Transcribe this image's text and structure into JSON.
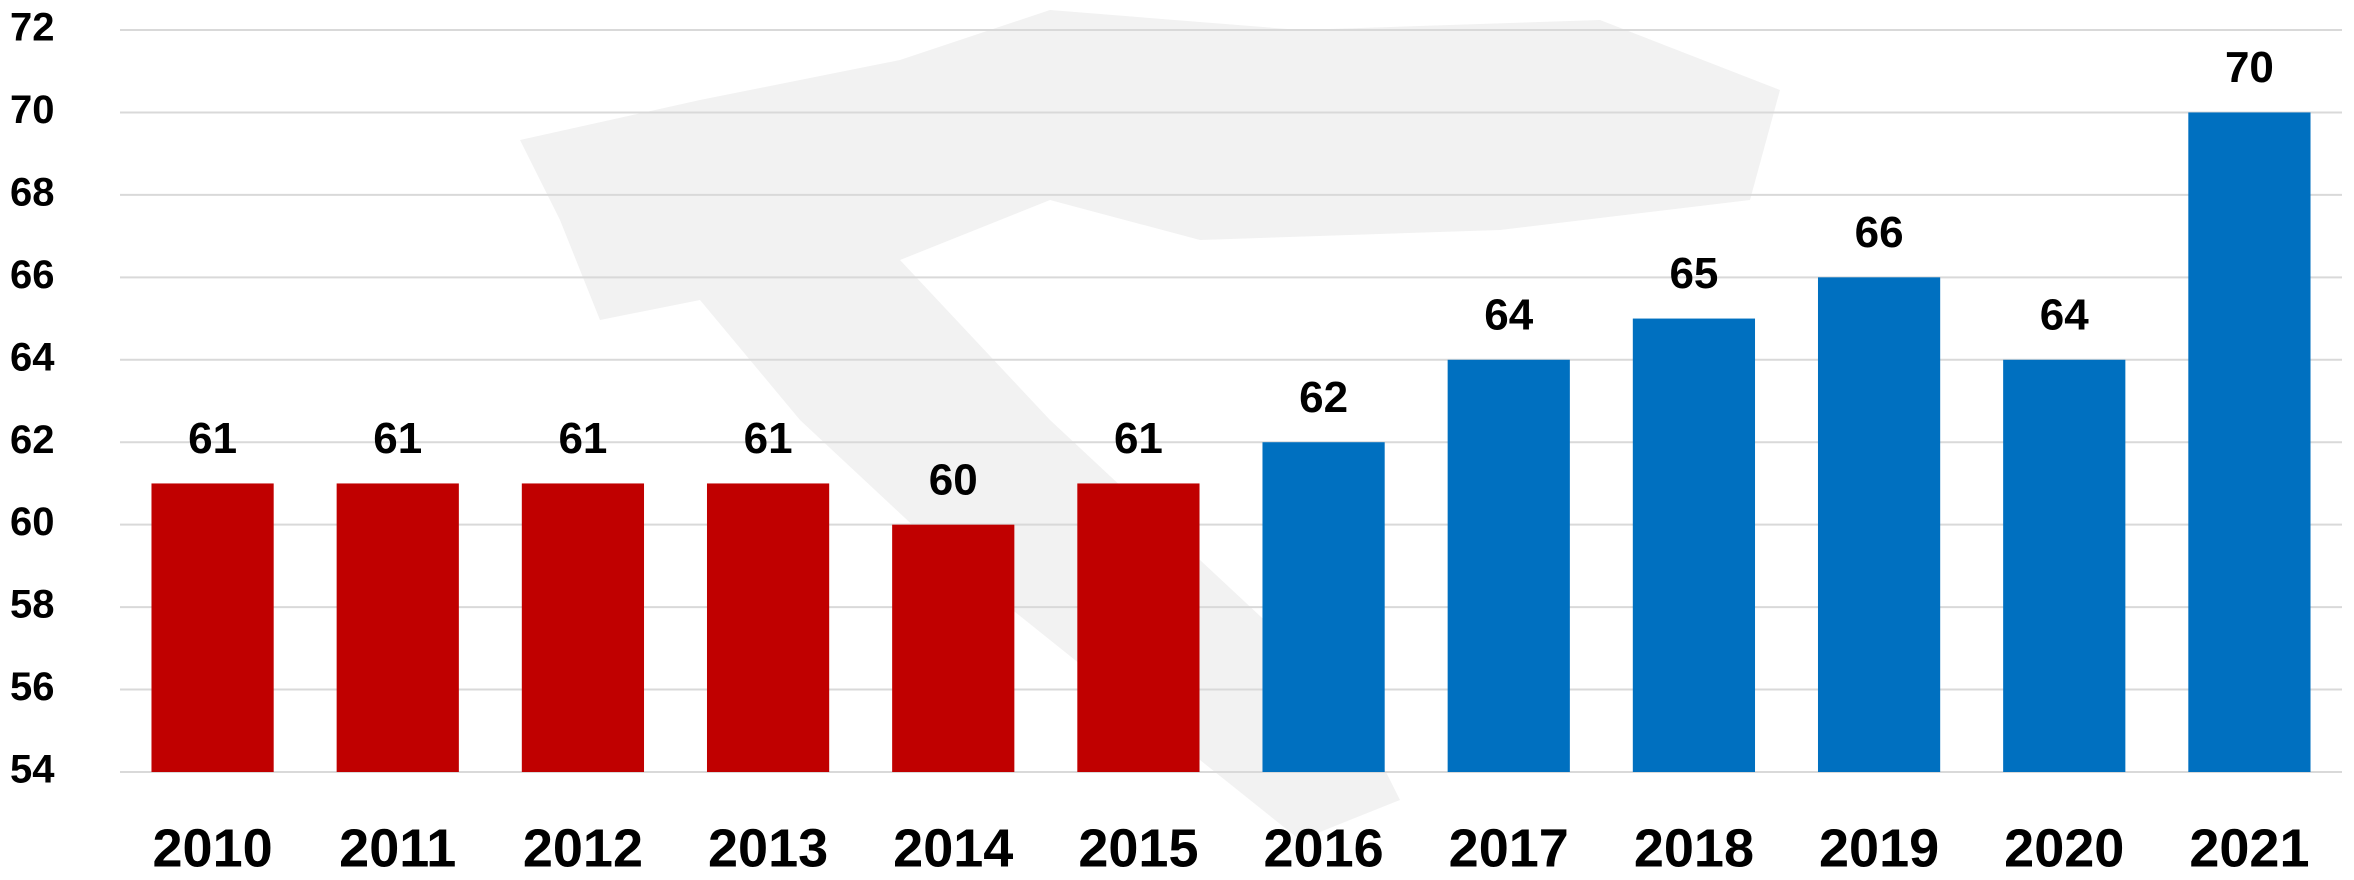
{
  "chart_data": {
    "type": "bar",
    "categories": [
      "2010",
      "2011",
      "2012",
      "2013",
      "2014",
      "2015",
      "2016",
      "2017",
      "2018",
      "2019",
      "2020",
      "2021"
    ],
    "values": [
      61,
      61,
      61,
      61,
      60,
      61,
      62,
      64,
      65,
      66,
      64,
      70
    ],
    "colors": [
      "#c00000",
      "#c00000",
      "#c00000",
      "#c00000",
      "#c00000",
      "#c00000",
      "#0070c0",
      "#0070c0",
      "#0070c0",
      "#0070c0",
      "#0070c0",
      "#0070c0"
    ],
    "ylim": [
      54,
      72
    ],
    "yticks": [
      54,
      56,
      58,
      60,
      62,
      64,
      66,
      68,
      70,
      72
    ],
    "grid": true
  }
}
